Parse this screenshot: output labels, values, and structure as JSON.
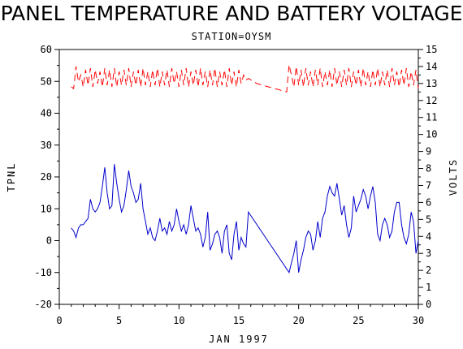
{
  "chart_data": {
    "type": "line",
    "title": "PANEL TEMPERATURE AND BATTERY VOLTAGE",
    "subtitle": "STATION=OYSM",
    "xlabel": "JAN 1997",
    "ylabel": "TPNL",
    "y2label": "VOLTS",
    "xlim": [
      0,
      30
    ],
    "ylim": [
      -20,
      60
    ],
    "y2lim": [
      0,
      15
    ],
    "xticks": [
      0,
      5,
      10,
      15,
      20,
      25,
      30
    ],
    "yticks": [
      -20,
      -10,
      0,
      10,
      20,
      30,
      40,
      50,
      60
    ],
    "y2ticks": [
      0,
      1,
      2,
      3,
      4,
      5,
      6,
      7,
      8,
      9,
      10,
      11,
      12,
      13,
      14,
      15
    ],
    "series": [
      {
        "axis": "left",
        "color": "#0000cc",
        "dash": "solid",
        "x": [
          1.0,
          1.2,
          1.4,
          1.6,
          1.8,
          2.0,
          2.2,
          2.4,
          2.6,
          2.8,
          3.0,
          3.2,
          3.4,
          3.6,
          3.8,
          4.0,
          4.2,
          4.4,
          4.6,
          4.8,
          5.0,
          5.2,
          5.4,
          5.6,
          5.8,
          6.0,
          6.2,
          6.4,
          6.6,
          6.8,
          7.0,
          7.2,
          7.4,
          7.6,
          7.8,
          8.0,
          8.2,
          8.4,
          8.6,
          8.8,
          9.0,
          9.2,
          9.4,
          9.6,
          9.8,
          10.0,
          10.2,
          10.4,
          10.6,
          10.8,
          11.0,
          11.2,
          11.4,
          11.6,
          11.8,
          12.0,
          12.2,
          12.4,
          12.6,
          12.8,
          13.0,
          13.2,
          13.4,
          13.6,
          13.8,
          14.0,
          14.2,
          14.4,
          14.6,
          14.8,
          15.0,
          15.2,
          15.4,
          15.6,
          15.8,
          19.2,
          19.4,
          19.6,
          19.8,
          20.0,
          20.2,
          20.4,
          20.6,
          20.8,
          21.0,
          21.2,
          21.4,
          21.6,
          21.8,
          22.0,
          22.2,
          22.4,
          22.6,
          22.8,
          23.0,
          23.2,
          23.4,
          23.6,
          23.8,
          24.0,
          24.2,
          24.4,
          24.6,
          24.8,
          25.0,
          25.2,
          25.4,
          25.6,
          25.8,
          26.0,
          26.2,
          26.4,
          26.6,
          26.8,
          27.0,
          27.2,
          27.4,
          27.6,
          27.8,
          28.0,
          28.2,
          28.4,
          28.6,
          28.8,
          29.0,
          29.2,
          29.4,
          29.6,
          29.8,
          30.0
        ],
        "y": [
          4,
          3,
          1,
          4,
          5,
          5,
          6,
          7,
          13,
          10,
          9,
          10,
          12,
          17,
          23,
          15,
          10,
          11,
          24,
          18,
          13,
          9,
          11,
          16,
          22,
          17,
          15,
          12,
          13,
          18,
          10,
          6,
          2,
          4,
          1,
          0,
          3,
          7,
          3,
          4,
          2,
          6,
          3,
          5,
          10,
          6,
          3,
          5,
          2,
          5,
          11,
          7,
          3,
          4,
          2,
          -2,
          1,
          9,
          -3,
          -1,
          2,
          3,
          1,
          -4,
          3,
          5,
          -4,
          -6,
          2,
          6,
          -3,
          1,
          -1,
          -2,
          9,
          -10,
          -7,
          -4,
          0,
          -10,
          -6,
          -3,
          1,
          3,
          2,
          -3,
          0,
          6,
          1,
          7,
          9,
          14,
          17,
          15,
          14,
          18,
          13,
          8,
          11,
          5,
          1,
          4,
          14,
          9,
          11,
          13,
          16,
          14,
          10,
          14,
          17,
          12,
          2,
          0,
          5,
          7,
          5,
          1,
          3,
          9,
          12,
          12,
          5,
          1,
          -1,
          2,
          9,
          6,
          -4,
          0
        ]
      },
      {
        "axis": "right",
        "color": "#ff0000",
        "dash": "dashed",
        "x": [
          1.0,
          1.2,
          1.4,
          1.6,
          1.8,
          2.0,
          2.2,
          2.4,
          2.6,
          2.8,
          3.0,
          3.2,
          3.4,
          3.6,
          3.8,
          4.0,
          4.2,
          4.4,
          4.6,
          4.8,
          5.0,
          5.2,
          5.4,
          5.6,
          5.8,
          6.0,
          6.2,
          6.4,
          6.6,
          6.8,
          7.0,
          7.2,
          7.4,
          7.6,
          7.8,
          8.0,
          8.2,
          8.4,
          8.6,
          8.8,
          9.0,
          9.2,
          9.4,
          9.6,
          9.8,
          10.0,
          10.2,
          10.4,
          10.6,
          10.8,
          11.0,
          11.2,
          11.4,
          11.6,
          11.8,
          12.0,
          12.2,
          12.4,
          12.6,
          12.8,
          13.0,
          13.2,
          13.4,
          13.6,
          13.8,
          14.0,
          14.2,
          14.4,
          14.6,
          14.8,
          15.0,
          15.2,
          15.4,
          15.6,
          15.8,
          16.5,
          17.0,
          17.5,
          18.0,
          18.5,
          19.0,
          19.2,
          19.4,
          19.6,
          19.8,
          20.0,
          20.2,
          20.4,
          20.6,
          20.8,
          21.0,
          21.2,
          21.4,
          21.6,
          21.8,
          22.0,
          22.2,
          22.4,
          22.6,
          22.8,
          23.0,
          23.2,
          23.4,
          23.6,
          23.8,
          24.0,
          24.2,
          24.4,
          24.6,
          24.8,
          25.0,
          25.2,
          25.4,
          25.6,
          25.8,
          26.0,
          26.2,
          26.4,
          26.6,
          26.8,
          27.0,
          27.2,
          27.4,
          27.6,
          27.8,
          28.0,
          28.2,
          28.4,
          28.6,
          28.8,
          29.0,
          29.2,
          29.4,
          29.6,
          29.8,
          30.0
        ],
        "y": [
          12.8,
          12.7,
          14.0,
          13.1,
          13.5,
          12.8,
          13.8,
          12.9,
          13.9,
          12.8,
          13.8,
          13.0,
          13.7,
          12.8,
          13.9,
          12.9,
          13.8,
          12.8,
          13.9,
          12.8,
          13.7,
          12.9,
          13.8,
          12.9,
          13.9,
          12.8,
          13.7,
          12.9,
          13.8,
          12.8,
          13.9,
          12.9,
          13.7,
          12.8,
          13.8,
          12.9,
          13.9,
          12.8,
          13.7,
          12.9,
          13.8,
          12.8,
          13.9,
          13.0,
          13.7,
          12.8,
          13.8,
          12.9,
          13.9,
          12.8,
          13.7,
          12.9,
          13.8,
          12.8,
          13.9,
          12.9,
          13.7,
          12.8,
          13.8,
          12.9,
          13.9,
          12.8,
          13.7,
          12.9,
          13.8,
          12.8,
          13.9,
          12.9,
          13.7,
          12.8,
          13.8,
          13.0,
          13.5,
          13.2,
          13.3,
          13.0,
          12.9,
          12.8,
          12.7,
          12.6,
          12.5,
          14.1,
          13.5,
          12.8,
          14.0,
          12.9,
          13.8,
          12.8,
          13.9,
          12.9,
          13.7,
          12.8,
          13.8,
          12.9,
          13.9,
          12.8,
          13.7,
          12.9,
          13.8,
          12.8,
          13.9,
          12.9,
          13.7,
          12.8,
          13.8,
          12.9,
          13.9,
          12.8,
          13.7,
          12.9,
          13.8,
          12.8,
          13.9,
          12.9,
          13.7,
          12.8,
          13.8,
          12.9,
          13.9,
          12.8,
          13.7,
          12.9,
          13.8,
          12.8,
          13.9,
          12.9,
          13.7,
          12.8,
          13.8,
          12.9,
          13.9,
          12.8,
          13.7,
          12.9,
          13.8,
          12.7
        ]
      }
    ]
  }
}
